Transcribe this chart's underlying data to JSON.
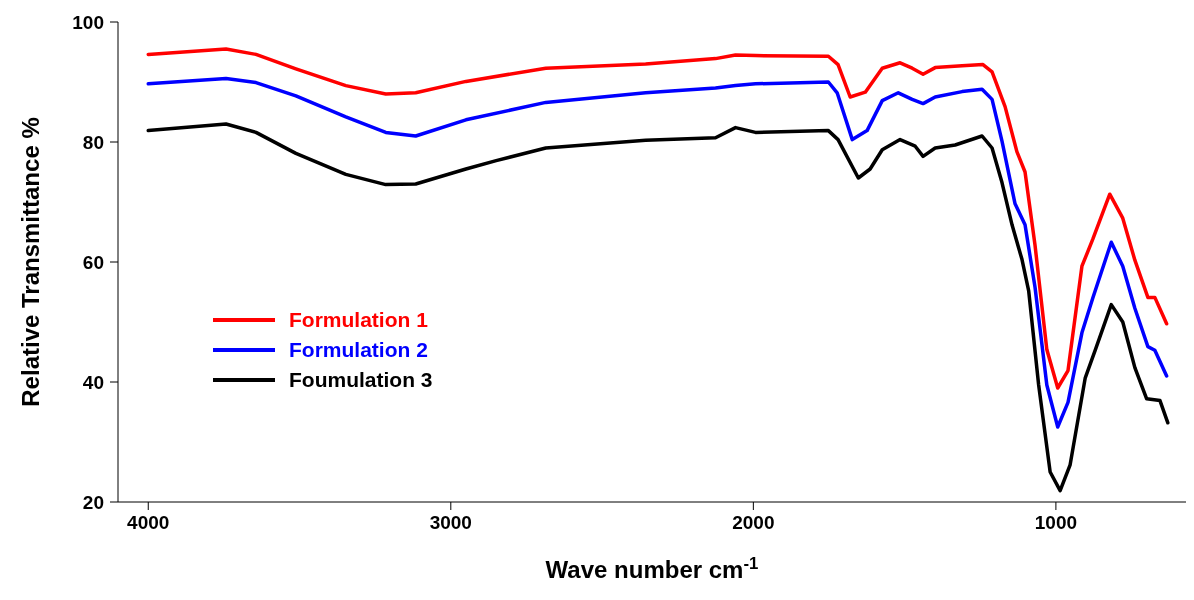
{
  "chart_data": {
    "type": "line",
    "xlabel": "Wave number cm$^{-1}$",
    "ylabel": "Relative Transmittance %",
    "xlim": [
      4100,
      570
    ],
    "xticks": [
      4000,
      3000,
      2000,
      1000
    ],
    "ylim": [
      20,
      100
    ],
    "yticks": [
      20,
      40,
      60,
      80,
      100
    ],
    "grid": false,
    "legend": "left",
    "marker": "none",
    "line_style": "solid",
    "series": [
      {
        "name": "Formulation 1",
        "color": "#ff0000",
        "x": [
          4000,
          3743,
          3644,
          3512,
          3347,
          3215,
          3116,
          2950,
          2686,
          2356,
          2125,
          2059,
          1993,
          1752,
          1720,
          1680,
          1630,
          1574,
          1515,
          1475,
          1439,
          1399,
          1310,
          1241,
          1211,
          1168,
          1129,
          1102,
          1069,
          1030,
          994,
          960,
          914,
          878,
          822,
          779,
          739,
          696,
          673,
          634
        ],
        "values": [
          94.6,
          95.5,
          94.6,
          92.2,
          89.4,
          88.0,
          88.2,
          90.1,
          92.3,
          93.0,
          93.9,
          94.5,
          94.4,
          94.3,
          92.9,
          87.5,
          88.3,
          92.3,
          93.2,
          92.3,
          91.3,
          92.4,
          92.7,
          92.9,
          91.7,
          85.9,
          78.4,
          75.0,
          62.8,
          45.4,
          39.0,
          41.9,
          59.3,
          63.8,
          71.3,
          67.3,
          60.3,
          54.1,
          54.1,
          49.7
        ]
      },
      {
        "name": "Formulation 2",
        "color": "#0000ff",
        "x": [
          4000,
          3743,
          3644,
          3512,
          3347,
          3215,
          3116,
          2950,
          2686,
          2356,
          2125,
          2059,
          1993,
          1752,
          1723,
          1673,
          1624,
          1574,
          1521,
          1475,
          1439,
          1399,
          1310,
          1244,
          1211,
          1178,
          1135,
          1102,
          1069,
          1030,
          994,
          960,
          914,
          878,
          817,
          779,
          739,
          696,
          673,
          634
        ],
        "values": [
          89.7,
          90.6,
          89.9,
          87.7,
          84.2,
          81.6,
          81.0,
          83.7,
          86.6,
          88.2,
          89.0,
          89.4,
          89.7,
          90.0,
          88.2,
          80.4,
          81.9,
          86.9,
          88.2,
          87.1,
          86.4,
          87.5,
          88.4,
          88.8,
          87.1,
          80.1,
          69.7,
          66.2,
          55.8,
          39.5,
          32.5,
          36.6,
          48.2,
          54.0,
          63.3,
          59.3,
          52.3,
          45.9,
          45.3,
          41.0
        ]
      },
      {
        "name": "Foumulation 3",
        "color": "#000000",
        "x": [
          4000,
          3743,
          3644,
          3512,
          3347,
          3215,
          3116,
          2950,
          2850,
          2686,
          2356,
          2125,
          2059,
          1993,
          1752,
          1720,
          1653,
          1614,
          1574,
          1515,
          1465,
          1439,
          1399,
          1333,
          1244,
          1211,
          1178,
          1145,
          1112,
          1090,
          1057,
          1019,
          986,
          953,
          903,
          870,
          817,
          779,
          739,
          700,
          656,
          630
        ],
        "values": [
          81.9,
          83.0,
          81.6,
          78.1,
          74.6,
          72.9,
          73.0,
          75.5,
          76.9,
          79.0,
          80.3,
          80.7,
          82.4,
          81.6,
          81.9,
          80.4,
          74.0,
          75.5,
          78.7,
          80.4,
          79.3,
          77.6,
          79.0,
          79.5,
          81.0,
          79.0,
          73.2,
          66.2,
          60.4,
          55.2,
          39.5,
          25.0,
          21.9,
          26.2,
          40.7,
          45.3,
          52.9,
          50.0,
          42.4,
          37.2,
          36.9,
          33.2
        ]
      }
    ]
  }
}
